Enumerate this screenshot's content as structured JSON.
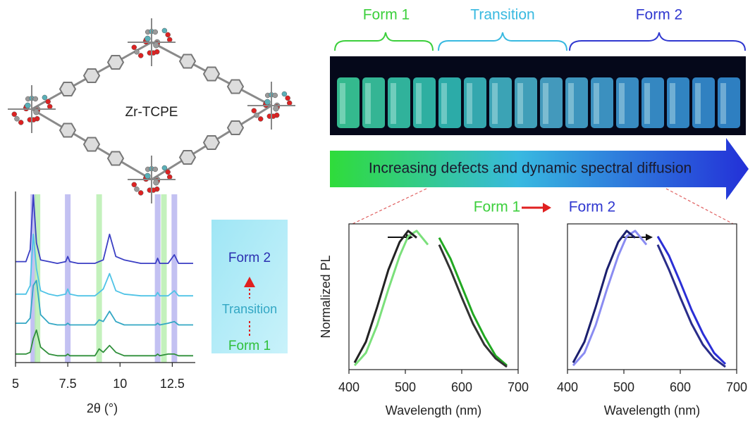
{
  "figure": {
    "molecule_label": "Zr-TCPE",
    "phases": [
      "Form 1",
      "Transition",
      "Form 2"
    ],
    "arrow_text": "Increasing defects and dynamic spectral diffusion",
    "transform": {
      "from": "Form 1",
      "to": "Form 2"
    },
    "sequence": [
      "Form 2",
      "Transition",
      "Form 1"
    ]
  },
  "chart_data": [
    {
      "type": "line",
      "xlabel": "2θ (°)",
      "x": [
        5.0,
        5.5,
        5.7,
        5.85,
        6.0,
        6.2,
        6.6,
        7.0,
        7.4,
        7.5,
        7.6,
        8.0,
        8.8,
        9.0,
        9.2,
        9.5,
        9.8,
        10.2,
        11.0,
        11.7,
        11.8,
        11.9,
        12.3,
        12.6,
        12.8,
        13.5
      ],
      "xlim": [
        5,
        13.6
      ],
      "xticks": [
        5,
        7.5,
        10,
        12.5
      ],
      "ylim": [
        0,
        100
      ],
      "highlights": [
        {
          "x": 5.85,
          "color": "#b9b6f0"
        },
        {
          "x": 6.05,
          "color": "#b8eeb0"
        },
        {
          "x": 7.5,
          "color": "#b9b6f0"
        },
        {
          "x": 9.0,
          "color": "#b8eeb0"
        },
        {
          "x": 11.8,
          "color": "#b9b6f0"
        },
        {
          "x": 12.1,
          "color": "#b8eeb0"
        },
        {
          "x": 12.6,
          "color": "#b9b6f0"
        }
      ],
      "series": [
        {
          "color": "#3b3fc4",
          "values": [
            59,
            59,
            66,
            98,
            70,
            60,
            59,
            58,
            59,
            62,
            59,
            58,
            58,
            59,
            60,
            75,
            62,
            60,
            58,
            58,
            61,
            58,
            58,
            63,
            58,
            58
          ]
        },
        {
          "color": "#4fc3e6",
          "values": [
            40,
            40,
            45,
            75,
            55,
            42,
            40,
            39,
            40,
            43,
            40,
            39,
            39,
            41,
            43,
            52,
            42,
            40,
            39,
            39,
            41,
            39,
            39,
            42,
            39,
            39
          ]
        },
        {
          "color": "#33a7c4",
          "values": [
            23,
            23,
            26,
            45,
            48,
            28,
            23,
            22,
            22,
            23,
            22,
            22,
            22,
            25,
            24,
            30,
            24,
            22,
            22,
            22,
            23,
            22,
            23,
            24,
            22,
            22
          ]
        },
        {
          "color": "#2f8f3a",
          "values": [
            5,
            5,
            6,
            14,
            19,
            9,
            5,
            4,
            4,
            5,
            4,
            4,
            4,
            8,
            6,
            10,
            6,
            4,
            4,
            4,
            5,
            4,
            5,
            5,
            4,
            4
          ]
        }
      ]
    },
    {
      "type": "line",
      "ylabel": "Normalized PL",
      "xlabel": "Wavelength (nm)",
      "x": [
        410,
        430,
        450,
        470,
        490,
        505,
        520,
        540,
        560,
        580,
        600,
        620,
        640,
        660,
        680
      ],
      "xlim": [
        400,
        700
      ],
      "xticks": [
        400,
        500,
        600,
        700
      ],
      "ylim": [
        0,
        1.05
      ],
      "series": [
        {
          "color": "#7be07b",
          "values": [
            0.03,
            0.12,
            0.32,
            0.58,
            0.82,
            0.96,
            1.0,
            0.9,
            null,
            null,
            null,
            null,
            null,
            null,
            null
          ]
        },
        {
          "color": "#22a822",
          "values": [
            null,
            null,
            null,
            null,
            null,
            null,
            null,
            null,
            0.95,
            0.8,
            0.6,
            0.4,
            0.24,
            0.1,
            0.03
          ]
        },
        {
          "color": "#222222",
          "values": [
            0.05,
            0.2,
            0.45,
            0.72,
            0.92,
            1.0,
            0.95,
            null,
            null,
            null,
            null,
            null,
            null,
            null,
            null
          ]
        },
        {
          "color": "#333333",
          "values": [
            null,
            null,
            null,
            null,
            null,
            null,
            null,
            null,
            0.9,
            0.72,
            0.52,
            0.33,
            0.18,
            0.08,
            0.02
          ]
        }
      ]
    },
    {
      "type": "line",
      "xlabel": "Wavelength (nm)",
      "x": [
        410,
        430,
        450,
        470,
        490,
        505,
        520,
        540,
        560,
        580,
        600,
        620,
        640,
        660,
        680
      ],
      "xlim": [
        400,
        700
      ],
      "xticks": [
        400,
        500,
        600,
        700
      ],
      "ylim": [
        0,
        1.05
      ],
      "series": [
        {
          "color": "#8a8cf2",
          "values": [
            0.03,
            0.12,
            0.32,
            0.58,
            0.82,
            0.96,
            1.0,
            0.9,
            null,
            null,
            null,
            null,
            null,
            null,
            null
          ]
        },
        {
          "color": "#2b2fd6",
          "values": [
            null,
            null,
            null,
            null,
            null,
            null,
            null,
            null,
            0.96,
            0.82,
            0.63,
            0.43,
            0.26,
            0.12,
            0.04
          ]
        },
        {
          "color": "#1b1f6e",
          "values": [
            0.05,
            0.2,
            0.45,
            0.72,
            0.92,
            1.0,
            0.95,
            null,
            null,
            null,
            null,
            null,
            null,
            null,
            null
          ]
        },
        {
          "color": "#2a2d8a",
          "values": [
            null,
            null,
            null,
            null,
            null,
            null,
            null,
            null,
            0.9,
            0.72,
            0.52,
            0.33,
            0.18,
            0.08,
            0.02
          ]
        }
      ]
    }
  ]
}
